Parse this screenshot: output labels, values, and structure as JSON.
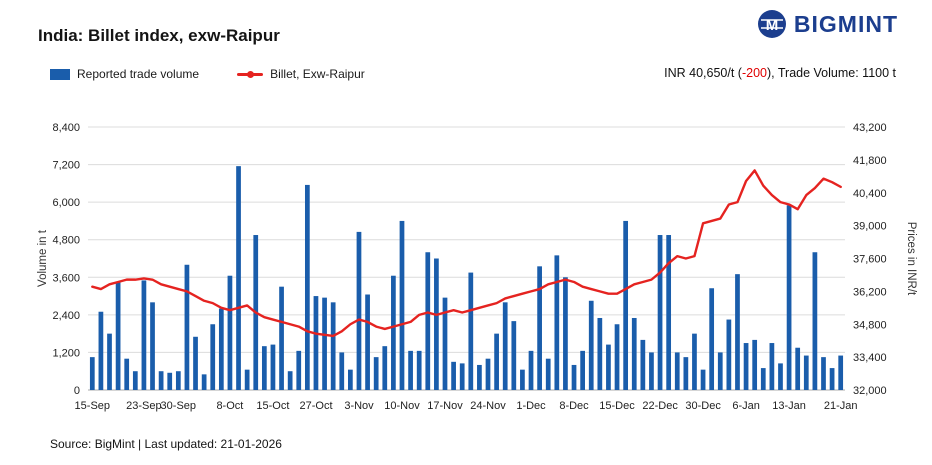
{
  "header": {
    "title": "India: Billet index, exw-Raipur",
    "brand": "BIGMINT"
  },
  "legend": [
    {
      "label": "Reported trade volume",
      "type": "bar",
      "color": "#1a5dab"
    },
    {
      "label": "Billet, Exw-Raipur",
      "type": "line",
      "color": "#e52320"
    }
  ],
  "summary": {
    "prefix": "INR 40,650/t (",
    "change": "-200",
    "suffix": "), Trade Volume: 1100 t"
  },
  "footer": "Source: BigMint | Last updated: 21-01-2026",
  "chart_data": {
    "type": "combo",
    "title": "India: Billet index, exw-Raipur",
    "grid": true,
    "legend_position": "top-left",
    "left_axis": {
      "label": "Volume in t",
      "min": 0,
      "max": 8400,
      "tick_step": 1200
    },
    "right_axis": {
      "label": "Prices in INR/t",
      "min": 32000,
      "max": 43200,
      "tick_step": 1400
    },
    "x_ticks": [
      {
        "index": 0,
        "label": "15-Sep"
      },
      {
        "index": 6,
        "label": "23-Sep"
      },
      {
        "index": 10,
        "label": "30-Sep"
      },
      {
        "index": 16,
        "label": "8-Oct"
      },
      {
        "index": 21,
        "label": "15-Oct"
      },
      {
        "index": 26,
        "label": "27-Oct"
      },
      {
        "index": 31,
        "label": "3-Nov"
      },
      {
        "index": 36,
        "label": "10-Nov"
      },
      {
        "index": 41,
        "label": "17-Nov"
      },
      {
        "index": 46,
        "label": "24-Nov"
      },
      {
        "index": 51,
        "label": "1-Dec"
      },
      {
        "index": 56,
        "label": "8-Dec"
      },
      {
        "index": 61,
        "label": "15-Dec"
      },
      {
        "index": 66,
        "label": "22-Dec"
      },
      {
        "index": 71,
        "label": "30-Dec"
      },
      {
        "index": 76,
        "label": "6-Jan"
      },
      {
        "index": 81,
        "label": "13-Jan"
      },
      {
        "index": 87,
        "label": "21-Jan"
      }
    ],
    "series": [
      {
        "name": "Reported trade volume",
        "type": "bar",
        "axis": "left",
        "color": "#1a5dab",
        "values": [
          1050,
          2500,
          1800,
          3450,
          1000,
          600,
          3500,
          2800,
          600,
          550,
          600,
          4000,
          1700,
          500,
          2100,
          2600,
          3650,
          7150,
          650,
          4950,
          1400,
          1450,
          3300,
          600,
          1250,
          6550,
          3000,
          2950,
          2800,
          1200,
          650,
          5050,
          3050,
          1050,
          1400,
          3650,
          5400,
          1250,
          1250,
          4400,
          4200,
          2950,
          900,
          850,
          3750,
          800,
          1000,
          1800,
          2800,
          2200,
          650,
          1250,
          3950,
          1000,
          4300,
          3600,
          800,
          1250,
          2850,
          2300,
          1450,
          2100,
          5400,
          2300,
          1600,
          1200,
          4950,
          4950,
          1200,
          1050,
          1800,
          650,
          3250,
          1200,
          2250,
          3700,
          1500,
          1600,
          700,
          1500,
          850,
          5900,
          1350,
          1100,
          4400,
          1050,
          700,
          1100
        ]
      },
      {
        "name": "Billet, Exw-Raipur",
        "type": "line",
        "axis": "right",
        "color": "#e52320",
        "values": [
          36400,
          36300,
          36500,
          36600,
          36700,
          36700,
          36750,
          36700,
          36500,
          36400,
          36300,
          36200,
          36000,
          35800,
          35700,
          35500,
          35400,
          35500,
          35600,
          35300,
          35100,
          35000,
          34900,
          34800,
          34700,
          34500,
          34400,
          34350,
          34300,
          34500,
          34800,
          35000,
          34900,
          34700,
          34600,
          34700,
          34800,
          34900,
          35200,
          35300,
          35200,
          35300,
          35400,
          35300,
          35400,
          35500,
          35600,
          35700,
          35900,
          36000,
          36100,
          36200,
          36300,
          36500,
          36600,
          36700,
          36600,
          36400,
          36300,
          36200,
          36100,
          36100,
          36300,
          36500,
          36600,
          36700,
          37000,
          37400,
          37700,
          37600,
          37700,
          39100,
          39200,
          39300,
          39900,
          40000,
          40900,
          41350,
          40700,
          40300,
          40000,
          39900,
          39700,
          40300,
          40600,
          41000,
          40850,
          40650
        ]
      }
    ]
  }
}
